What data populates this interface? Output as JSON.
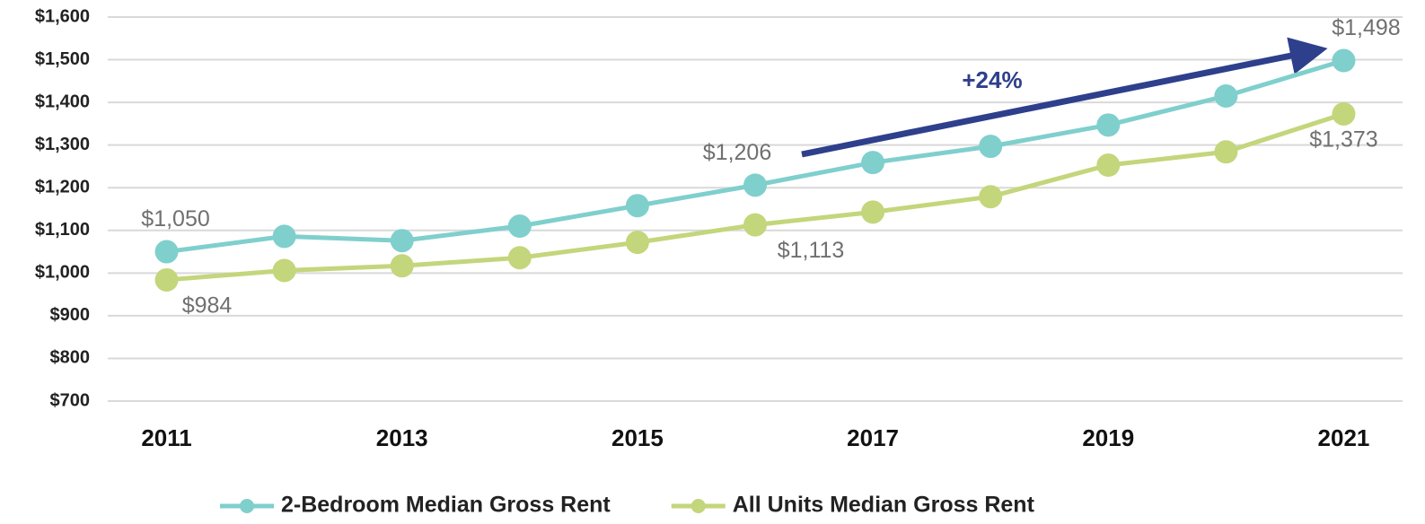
{
  "chart_data": {
    "type": "line",
    "x": [
      2011,
      2012,
      2013,
      2014,
      2015,
      2016,
      2017,
      2018,
      2019,
      2020,
      2021
    ],
    "xlim": [
      2010.5,
      2021.5
    ],
    "xticks": [
      2011,
      2013,
      2015,
      2017,
      2019,
      2021
    ],
    "ylim": [
      700,
      1600
    ],
    "yticks": [
      {
        "value": 700,
        "label": "$700"
      },
      {
        "value": 800,
        "label": "$800"
      },
      {
        "value": 900,
        "label": "$900"
      },
      {
        "value": 1000,
        "label": "$1,000"
      },
      {
        "value": 1100,
        "label": "$1,100"
      },
      {
        "value": 1200,
        "label": "$1,200"
      },
      {
        "value": 1300,
        "label": "$1,300"
      },
      {
        "value": 1400,
        "label": "$1,400"
      },
      {
        "value": 1500,
        "label": "$1,500"
      },
      {
        "value": 1600,
        "label": "$1,600"
      }
    ],
    "grid": true,
    "legend": "bottom",
    "series": [
      {
        "name": "2-Bedroom Median Gross Rent",
        "color": "#7fcfcd",
        "values": [
          1050,
          1086,
          1076,
          1110,
          1158,
          1206,
          1259,
          1297,
          1347,
          1415,
          1498
        ],
        "value_labels": [
          "$1,050",
          null,
          null,
          null,
          null,
          "$1,206",
          null,
          null,
          null,
          null,
          "$1,498"
        ]
      },
      {
        "name": "All Units Median Gross Rent",
        "color": "#c3d67b",
        "values": [
          984,
          1006,
          1017,
          1036,
          1072,
          1113,
          1143,
          1179,
          1253,
          1284,
          1373
        ],
        "value_labels": [
          "$984",
          null,
          null,
          null,
          null,
          "$1,113",
          null,
          null,
          null,
          null,
          "$1,373"
        ]
      }
    ],
    "annotation": "+24%"
  }
}
